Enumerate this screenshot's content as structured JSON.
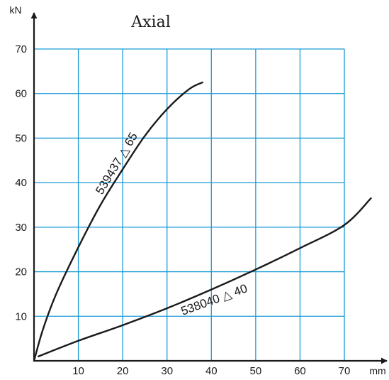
{
  "chart_data": {
    "type": "line",
    "title": "Axial",
    "xlabel": "mm",
    "ylabel": "kN",
    "xlim": [
      0,
      70
    ],
    "ylim": [
      0,
      70
    ],
    "x_ticks": [
      "10",
      "20",
      "30",
      "40",
      "50",
      "60",
      "70"
    ],
    "y_ticks": [
      "10",
      "20",
      "30",
      "40",
      "50",
      "60",
      "70"
    ],
    "grid": true,
    "colors": {
      "grid": "#1a9ad6",
      "axis": "#1a1a1a",
      "curve": "#1a1a1a"
    },
    "series": [
      {
        "name": "539437 △ 65",
        "x": [
          0,
          2,
          5,
          10,
          15,
          20,
          25,
          30,
          35,
          38
        ],
        "y": [
          0,
          7,
          15,
          25.5,
          35,
          43,
          50.5,
          56.5,
          61,
          62.5
        ]
      },
      {
        "name": "538040 △ 40",
        "x": [
          1,
          10,
          20,
          30,
          40,
          50,
          60,
          70,
          76
        ],
        "y": [
          1,
          4.5,
          8,
          11.8,
          16,
          20.5,
          25.3,
          30.5,
          36.5
        ]
      }
    ]
  }
}
